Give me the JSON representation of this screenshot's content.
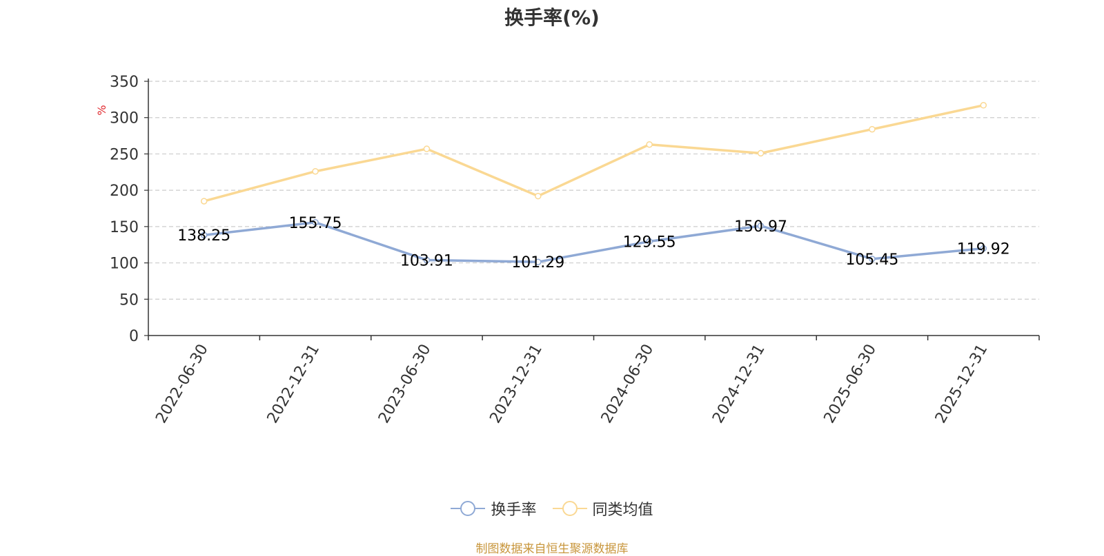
{
  "title": "换手率(%)",
  "source_note": "制图数据来自恒生聚源数据库",
  "colors": {
    "series_1": "#8fa9d5",
    "series_2": "#fad893",
    "unit": "#e0262c",
    "source": "#c8963c",
    "grid": "#cccccc",
    "axis": "#333333"
  },
  "chart_data": {
    "type": "line",
    "title": "换手率(%)",
    "ylabel": "%",
    "ylim": [
      0,
      350
    ],
    "yticks": [
      0,
      50,
      100,
      150,
      200,
      250,
      300,
      350
    ],
    "grid": "horizontal dashed",
    "legend_position": "bottom",
    "categories": [
      "2022-06-30",
      "2022-12-31",
      "2023-06-30",
      "2023-12-31",
      "2024-06-30",
      "2024-12-31",
      "2025-06-30",
      "2025-12-31"
    ],
    "series": [
      {
        "name": "换手率",
        "values": [
          138.25,
          155.75,
          103.91,
          101.29,
          129.55,
          150.97,
          105.45,
          119.92
        ],
        "labels": [
          "138.25",
          "155.75",
          "103.91",
          "101.29",
          "129.55",
          "150.97",
          "105.45",
          "119.92"
        ]
      },
      {
        "name": "同类均值",
        "values": [
          185,
          226,
          257,
          192,
          263,
          251,
          284,
          317
        ]
      }
    ]
  }
}
